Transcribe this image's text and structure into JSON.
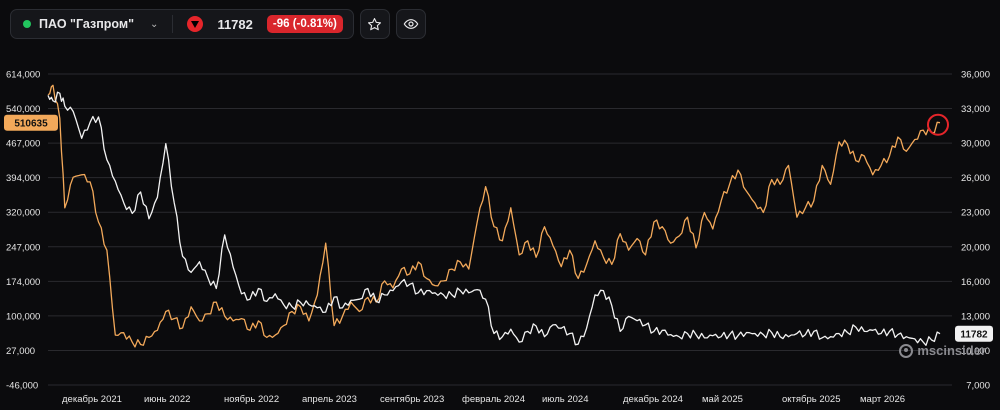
{
  "toolbar": {
    "ticker_name": "ПАО \"Газпром\"",
    "price": "11782",
    "change": "-96 (-0.81%)",
    "status_color": "#22c55e",
    "change_color": "#d9262c",
    "icons": [
      "chevron-down-icon",
      "triangle-down-icon",
      "star-icon",
      "eye-icon"
    ]
  },
  "watermark": "mscinsider",
  "chart_data": {
    "type": "line",
    "left_axis": {
      "ticks": [
        "614,000",
        "540,000",
        "467,000",
        "394,000",
        "320,000",
        "247,000",
        "174,000",
        "100,000",
        "27,000",
        "-46,000"
      ],
      "range": [
        -46000,
        614000
      ],
      "current_label": "510635",
      "current_color": "#f3a95a"
    },
    "right_axis": {
      "ticks": [
        "36,000",
        "33,000",
        "30,000",
        "26,000",
        "23,000",
        "20,000",
        "16,000",
        "13,000",
        "10,000",
        "7,000"
      ],
      "range": [
        7000,
        36000
      ],
      "current_label": "11782"
    },
    "x_ticks": [
      "декабрь 2021",
      "июнь 2022",
      "ноябрь 2022",
      "апрель 2023",
      "сентябрь 2023",
      "февраль 2024",
      "июль 2024",
      "декабрь 2024",
      "май 2025",
      "октябрь 2025",
      "март 2026"
    ],
    "series": [
      {
        "axis": "left",
        "color": "#f3a95a",
        "x": [
          0,
          0.3,
          0.7,
          1,
          1.5,
          2,
          2.5,
          3,
          3.5,
          4,
          4.5,
          5,
          5.5,
          6,
          6.5,
          7,
          7.5,
          8,
          8.5,
          9,
          9.5,
          10,
          10.5,
          11,
          11.5,
          12,
          12.5,
          13,
          13.5,
          14,
          14.5,
          15,
          15.5,
          16,
          16.5,
          17,
          17.5,
          18,
          18.5,
          19,
          19.5,
          20,
          20.5,
          21,
          21.5,
          22,
          22.5,
          23,
          23.5,
          24,
          24.5,
          25,
          25.5,
          26,
          26.5,
          27,
          27.5,
          28,
          28.5,
          29,
          29.5,
          30,
          30.5,
          31,
          31.5,
          32,
          32.5,
          33,
          33.5,
          34,
          34.5,
          35,
          35.5,
          36,
          36.5,
          37,
          37.5,
          38,
          38.5,
          39,
          39.5,
          40,
          40.5,
          41,
          41.5,
          42,
          42.5,
          43,
          43.5,
          44,
          44.5,
          45,
          45.5,
          46,
          46.5,
          47,
          47.5,
          48,
          48.5,
          49,
          49.5,
          50,
          50.5,
          51,
          51.5,
          52,
          52.5,
          53
        ],
        "values": [
          570000,
          590000,
          520000,
          330000,
          395000,
          400000,
          385000,
          300000,
          240000,
          60000,
          65000,
          45000,
          40000,
          55000,
          70000,
          110000,
          95000,
          75000,
          120000,
          90000,
          105000,
          130000,
          100000,
          90000,
          95000,
          70000,
          90000,
          55000,
          60000,
          80000,
          110000,
          120000,
          90000,
          145000,
          255000,
          80000,
          100000,
          130000,
          110000,
          140000,
          130000,
          175000,
          160000,
          200000,
          190000,
          215000,
          180000,
          165000,
          175000,
          200000,
          215000,
          200000,
          300000,
          375000,
          290000,
          260000,
          330000,
          230000,
          260000,
          225000,
          290000,
          250000,
          205000,
          240000,
          180000,
          210000,
          260000,
          225000,
          210000,
          275000,
          240000,
          265000,
          230000,
          300000,
          290000,
          255000,
          270000,
          310000,
          245000,
          320000,
          285000,
          345000,
          380000,
          410000,
          365000,
          340000,
          320000,
          390000,
          380000,
          420000,
          310000,
          330000,
          345000,
          420000,
          380000,
          470000,
          465000,
          430000,
          440000,
          400000,
          420000,
          440000,
          480000,
          450000,
          475000,
          495000,
          490000,
          510635
        ]
      },
      {
        "axis": "right",
        "color": "#f2f2f2",
        "x": [
          0,
          0.3,
          0.7,
          1,
          1.5,
          2,
          2.5,
          3,
          3.5,
          4,
          4.5,
          5,
          5.5,
          6,
          6.5,
          7,
          7.5,
          8,
          8.5,
          9,
          9.5,
          10,
          10.5,
          11,
          11.5,
          12,
          12.5,
          13,
          13.5,
          14,
          14.5,
          15,
          15.5,
          16,
          16.5,
          17,
          17.5,
          18,
          18.5,
          19,
          19.5,
          20,
          20.5,
          21,
          21.5,
          22,
          22.5,
          23,
          23.5,
          24,
          24.5,
          25,
          25.5,
          26,
          26.5,
          27,
          27.5,
          28,
          28.5,
          29,
          29.5,
          30,
          30.5,
          31,
          31.5,
          32,
          32.5,
          33,
          33.5,
          34,
          34.5,
          35,
          35.5,
          36,
          36.5,
          37,
          37.5,
          38,
          38.5,
          39,
          39.5,
          40,
          40.5,
          41,
          41.5,
          42,
          42.5,
          43,
          43.5,
          44,
          44.5,
          45,
          45.5,
          46,
          46.5,
          47,
          47.5,
          48,
          48.5,
          49,
          49.5,
          50,
          50.5,
          51,
          51.5,
          52,
          52.5,
          53
        ],
        "values": [
          34000,
          33500,
          34200,
          33000,
          32500,
          30000,
          31500,
          32000,
          28000,
          26000,
          24000,
          23000,
          25000,
          22500,
          24500,
          29500,
          24000,
          19000,
          17500,
          18500,
          17000,
          16000,
          21000,
          18000,
          15500,
          15000,
          16000,
          14800,
          15500,
          14500,
          14300,
          14700,
          14500,
          14200,
          13800,
          15200,
          14200,
          14900,
          15000,
          16000,
          14800,
          15400,
          15800,
          16600,
          16400,
          15600,
          15800,
          15600,
          15400,
          15400,
          15800,
          15600,
          15900,
          15000,
          11800,
          11500,
          12200,
          11000,
          12000,
          12500,
          11500,
          12600,
          12300,
          11800,
          10800,
          12300,
          15400,
          15800,
          14400,
          12000,
          13400,
          13000,
          12600,
          12000,
          12100,
          11700,
          11500,
          11800,
          11700,
          11400,
          11600,
          11500,
          11700,
          11600,
          11900,
          11800,
          11700,
          11900,
          11500,
          11500,
          11800,
          11700,
          12000,
          11400,
          11500,
          11800,
          11900,
          12400,
          12000,
          12100,
          11800,
          12000,
          11700,
          11500,
          11300,
          11000,
          11200,
          11782
        ]
      }
    ]
  }
}
